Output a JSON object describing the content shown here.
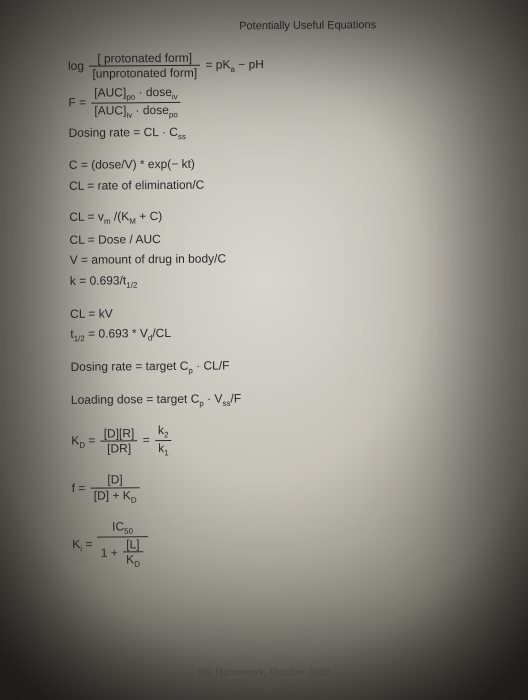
{
  "title": "Potentially Useful Equations",
  "footer": "PK Homework, October 2018",
  "eq": {
    "hh_num": "[ protonated form]",
    "hh_den": "[unprotonated form]",
    "hh_rhs": "= pK",
    "hh_rhs2": " − pH",
    "hh_sub": "a",
    "log": "log",
    "f_eq": "F =",
    "f_num": "[AUC]",
    "f_num_sub": "po",
    "f_num2": " · dose",
    "f_num2_sub": "iv",
    "f_den": "[AUC]",
    "f_den_sub": "iv",
    "f_den2": " · dose",
    "f_den2_sub": "po",
    "dosing_rate_css": "Dosing rate = CL · C",
    "dosing_rate_css_sub": "ss",
    "c_exp": "C = (dose/V) * exp(− kt)",
    "cl_rate": "CL = rate of elimination/C",
    "cl_vm": "CL = v",
    "cl_vm_sub": "m",
    "cl_vm2": " /(K",
    "cl_vm2_sub": "M",
    "cl_vm3": " + C)",
    "cl_dose_auc": "CL = Dose / AUC",
    "v_amount": "V = amount of drug in body/C",
    "k_halflife": "k = 0.693/t",
    "k_halflife_sub": "1/2",
    "cl_kv": "CL = kV",
    "t_half": "t",
    "t_half_sub": "1/2",
    "t_half2": " = 0.693 * V",
    "t_half2_sub": "d",
    "t_half3": "/CL",
    "dosing_target": "Dosing rate = target C",
    "dosing_target_sub": "p",
    "dosing_target2": " · CL/F",
    "loading": "Loading dose = target C",
    "loading_sub": "p",
    "loading2": " · V",
    "loading2_sub": "ss",
    "loading3": "/F",
    "kd": "K",
    "kd_sub": "D",
    "kd_eq": " =",
    "kd_num": "[D][R]",
    "kd_den": "[DR]",
    "kd_eq2": "=",
    "kd_num2": "k",
    "kd_num2_sub": "2",
    "kd_den2": "k",
    "kd_den2_sub": "1",
    "f_frac": "f =",
    "f_frac_num": "[D]",
    "f_frac_den": "[D] + K",
    "f_frac_den_sub": "D",
    "ki": "K",
    "ki_sub": "i",
    "ki_eq": " =",
    "ki_num": "IC",
    "ki_num_sub": "50",
    "ki_den_1": "1 +",
    "ki_den_num": "[L]",
    "ki_den_den": "K",
    "ki_den_den_sub": "D"
  },
  "style": {
    "base_font_size": 12,
    "title_font_size": 11,
    "text_color": "#2a2a2a",
    "bg_inner": "#d8d6d0",
    "bg_outer": "#3a3832"
  }
}
